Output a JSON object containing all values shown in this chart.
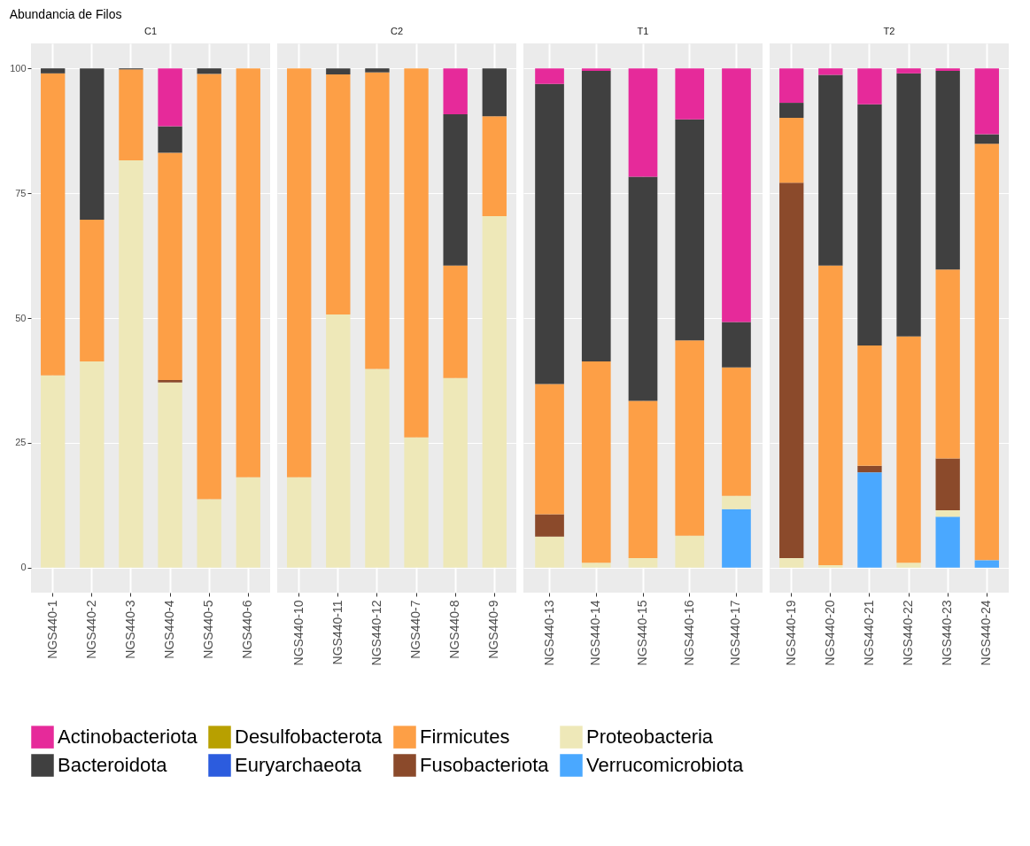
{
  "chart_data": [
    {
      "type": "bar",
      "stacked": true,
      "title": "C1",
      "ylabel": "Abundancia de Filos",
      "categories": [
        "NGS440-1",
        "NGS440-2",
        "NGS440-3",
        "NGS440-4",
        "NGS440-5",
        "NGS440-6"
      ],
      "ylim": [
        -5,
        105
      ],
      "yticks": [
        0,
        25,
        50,
        75,
        100
      ],
      "grid": true,
      "legend": "bottom",
      "series": [
        {
          "name": "Proteobacteria",
          "color": "#eee8b8",
          "values": [
            38.5,
            41.3,
            81.6,
            37.1,
            13.7,
            18.1
          ]
        },
        {
          "name": "Fusobacteriota",
          "color": "#8b4a2b",
          "values": [
            null,
            null,
            null,
            0.5,
            null,
            null
          ]
        },
        {
          "name": "Firmicutes",
          "color": "#fd9f46",
          "values": [
            60.5,
            28.4,
            18.2,
            45.5,
            85.2,
            81.9
          ]
        },
        {
          "name": "Euryarchaeota",
          "color": "#2c5cde",
          "values": [
            null,
            null,
            null,
            null,
            null,
            null
          ]
        },
        {
          "name": "Desulfobacterota",
          "color": "#b8a000",
          "values": [
            null,
            null,
            null,
            null,
            null,
            null
          ]
        },
        {
          "name": "Bacteroidota",
          "color": "#404040",
          "values": [
            1.0,
            30.3,
            0.2,
            5.3,
            1.1,
            null
          ]
        },
        {
          "name": "Actinobacteriota",
          "color": "#e62a9a",
          "values": [
            null,
            null,
            null,
            11.6,
            null,
            null
          ]
        }
      ]
    },
    {
      "type": "bar",
      "stacked": true,
      "title": "C2",
      "categories": [
        "NGS440-10",
        "NGS440-11",
        "NGS440-12",
        "NGS440-7",
        "NGS440-8",
        "NGS440-9"
      ],
      "ylim": [
        -5,
        105
      ],
      "yticks": [
        0,
        25,
        50,
        75,
        100
      ],
      "grid": true,
      "tick_labels": "x",
      "series": [
        {
          "name": "Proteobacteria",
          "color": "#eee8b8",
          "values": [
            18.1,
            50.7,
            39.8,
            26.1,
            38.0,
            70.4
          ]
        },
        {
          "name": "Firmicutes",
          "color": "#fd9f46",
          "values": [
            81.9,
            48.1,
            59.4,
            73.9,
            22.5,
            20.0
          ]
        },
        {
          "name": "Bacteroidota",
          "color": "#404040",
          "values": [
            null,
            1.2,
            0.8,
            null,
            30.3,
            9.6
          ]
        },
        {
          "name": "Actinobacteriota",
          "color": "#e62a9a",
          "values": [
            null,
            null,
            null,
            null,
            9.2,
            null
          ]
        }
      ]
    },
    {
      "type": "bar",
      "stacked": true,
      "title": "T1",
      "categories": [
        "NGS440-13",
        "NGS440-14",
        "NGS440-15",
        "NGS440-16",
        "NGS440-17"
      ],
      "ylim": [
        -5,
        105
      ],
      "yticks": [
        0,
        25,
        50,
        75,
        100
      ],
      "grid": true,
      "tick_labels": "x",
      "series": [
        {
          "name": "Verrucomicrobiota",
          "color": "#4aa8ff",
          "values": [
            null,
            null,
            null,
            null,
            11.7
          ]
        },
        {
          "name": "Proteobacteria",
          "color": "#eee8b8",
          "values": [
            6.2,
            1.0,
            1.9,
            6.4,
            2.7
          ]
        },
        {
          "name": "Fusobacteriota",
          "color": "#8b4a2b",
          "values": [
            4.5,
            null,
            null,
            null,
            null
          ]
        },
        {
          "name": "Firmicutes",
          "color": "#fd9f46",
          "values": [
            26.1,
            40.3,
            31.5,
            39.1,
            25.7
          ]
        },
        {
          "name": "Bacteroidota",
          "color": "#404040",
          "values": [
            60.1,
            58.2,
            44.9,
            44.3,
            9.1
          ]
        },
        {
          "name": "Actinobacteriota",
          "color": "#e62a9a",
          "values": [
            3.1,
            0.5,
            21.7,
            10.2,
            50.8
          ]
        }
      ]
    },
    {
      "type": "bar",
      "stacked": true,
      "title": "T2",
      "categories": [
        "NGS440-19",
        "NGS440-20",
        "NGS440-21",
        "NGS440-22",
        "NGS440-23",
        "NGS440-24"
      ],
      "ylim": [
        -5,
        105
      ],
      "yticks": [
        0,
        25,
        50,
        75,
        100
      ],
      "grid": true,
      "tick_labels": "x",
      "series": [
        {
          "name": "Verrucomicrobiota",
          "color": "#4aa8ff",
          "values": [
            null,
            null,
            19.1,
            null,
            10.2,
            1.5
          ]
        },
        {
          "name": "Proteobacteria",
          "color": "#eee8b8",
          "values": [
            1.9,
            0.5,
            null,
            1.0,
            1.3,
            null
          ]
        },
        {
          "name": "Fusobacteriota",
          "color": "#8b4a2b",
          "values": [
            75.2,
            null,
            1.3,
            null,
            10.4,
            null
          ]
        },
        {
          "name": "Firmicutes",
          "color": "#fd9f46",
          "values": [
            13.0,
            60.0,
            24.1,
            45.3,
            37.8,
            83.4
          ]
        },
        {
          "name": "Bacteroidota",
          "color": "#404040",
          "values": [
            3.0,
            38.2,
            48.3,
            52.7,
            39.8,
            1.9
          ]
        },
        {
          "name": "Actinobacteriota",
          "color": "#e62a9a",
          "values": [
            6.9,
            1.3,
            7.2,
            1.0,
            0.5,
            13.2
          ]
        }
      ]
    }
  ]
}
